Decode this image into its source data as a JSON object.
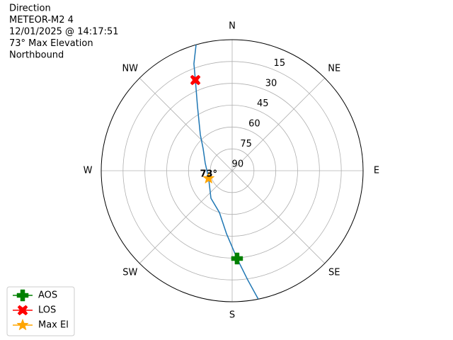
{
  "chart_data": {
    "type": "polar",
    "title_lines": [
      "Direction",
      "METEOR-M2 4",
      "12/01/2025 @ 14:17:51",
      "73° Max Elevation",
      "Northbound"
    ],
    "directions": [
      "N",
      "NE",
      "E",
      "SE",
      "S",
      "SW",
      "W",
      "NW"
    ],
    "rlim": [
      90,
      0
    ],
    "rticks": [
      15,
      30,
      45,
      60,
      75,
      90
    ],
    "grid": true,
    "track": {
      "color": "#1f77b4",
      "azimuth": [
        168.5,
        171.9,
        176.8,
        185.1,
        197,
        217.6,
        252,
        286.1,
        307.1,
        318.6,
        331.7,
        337.9,
        340.3,
        344
      ],
      "elevation": [
        0,
        14.3,
        29.6,
        46.5,
        60,
        66.1,
        73,
        70.7,
        65,
        56.9,
        39.7,
        22.8,
        12,
        0
      ]
    },
    "series": [
      {
        "name": "AOS",
        "color": "#008000",
        "marker": "plus",
        "azimuth": [
          176.8
        ],
        "elevation": [
          29.6
        ]
      },
      {
        "name": "LOS",
        "color": "#ff0000",
        "marker": "x",
        "azimuth": [
          337.9
        ],
        "elevation": [
          22.8
        ]
      },
      {
        "name": "Max El",
        "color": "#ffa500",
        "marker": "star",
        "azimuth": [
          252
        ],
        "elevation": [
          73
        ],
        "value_labels": [
          "73°"
        ]
      }
    ],
    "legend": "lower left"
  }
}
